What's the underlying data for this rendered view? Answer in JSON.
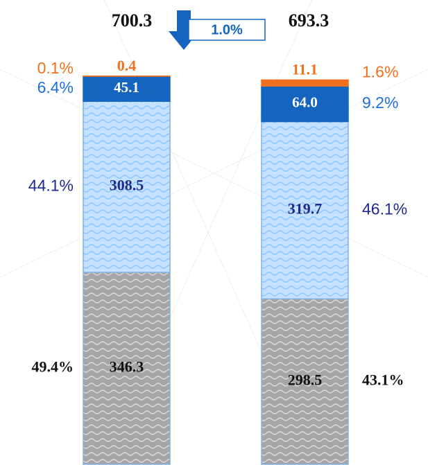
{
  "chart_data": {
    "type": "stacked-bar",
    "totals": [
      700.3,
      693.3
    ],
    "change": {
      "value": 1.0,
      "label": "1.0%"
    },
    "series": [
      {
        "name": "gray",
        "color": "#a6a6a6",
        "label_color": "#111111",
        "share_color": "#111111",
        "values": [
          346.3,
          298.5
        ],
        "shares": [
          49.4,
          43.1
        ],
        "share_labels": [
          "49.4%",
          "43.1%"
        ]
      },
      {
        "name": "light-blue",
        "color": "#c4e2ff",
        "label_color": "#1f2a8c",
        "share_color": "#1f2a8c",
        "values": [
          308.5,
          319.7
        ],
        "shares": [
          44.1,
          46.1
        ],
        "share_labels": [
          "44.1%",
          "46.1%"
        ]
      },
      {
        "name": "dark-blue",
        "color": "#1565c0",
        "label_color": "#ffffff",
        "share_color": "#1f6fe0",
        "values": [
          45.1,
          64.0
        ],
        "value_labels": [
          "45.1",
          "64.0"
        ],
        "shares": [
          6.4,
          9.2
        ],
        "share_labels": [
          "6.4%",
          "9.2%"
        ]
      },
      {
        "name": "orange",
        "color": "#f07020",
        "label_color": "#f07020",
        "share_color": "#f07020",
        "values": [
          0.4,
          11.1
        ],
        "shares": [
          0.1,
          1.6
        ],
        "share_labels": [
          "0.1%",
          "1.6%"
        ]
      }
    ]
  }
}
